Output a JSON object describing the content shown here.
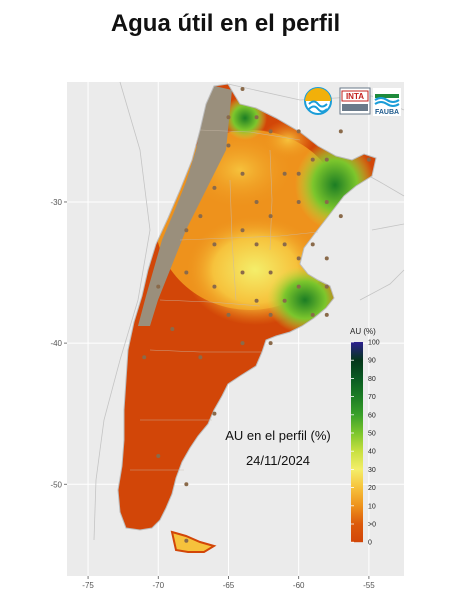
{
  "title": "Agua útil en el perfil",
  "annotation": {
    "line1": "AU en el perfil (%)",
    "line2": "24/11/2024"
  },
  "logos": {
    "inta": "INTA",
    "fauba": "FAUBA"
  },
  "axes": {
    "x_ticks": [
      "-75",
      "-70",
      "-65",
      "-60",
      "-55"
    ],
    "y_ticks": [
      "-30",
      "-40",
      "-50"
    ],
    "x_range": [
      -76.5,
      -52.5
    ],
    "y_range": [
      -56.5,
      -21.5
    ]
  },
  "legend": {
    "title": "AU (%)",
    "labels": [
      "100",
      "90",
      "80",
      "70",
      "60",
      "50",
      "40",
      "30",
      "20",
      "10",
      ">0",
      "0"
    ],
    "colors": [
      "#2c1f8f",
      "#05361a",
      "#0a5a22",
      "#1c7d24",
      "#3aa02a",
      "#7cc62c",
      "#c8e040",
      "#f4ee6a",
      "#f6c23c",
      "#ee921c",
      "#dc5a0c",
      "#d24608"
    ],
    "dry_color": "#d24608",
    "no_data_color": "#9a8f7c",
    "background_color": "#ebebeb"
  }
}
